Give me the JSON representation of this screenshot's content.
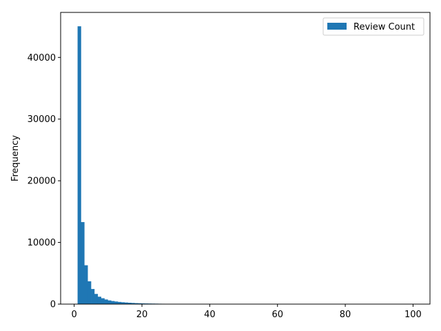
{
  "chart_data": {
    "type": "bar",
    "subtype": "histogram",
    "ylabel": "Frequency",
    "xlabel": "",
    "xlim": [
      -4,
      105
    ],
    "ylim": [
      0,
      47300
    ],
    "xticks": [
      0,
      20,
      40,
      60,
      80,
      100
    ],
    "yticks": [
      0,
      10000,
      20000,
      30000,
      40000
    ],
    "bin_start": 1,
    "bin_width": 0.99,
    "series": [
      {
        "name": "Review Count",
        "color": "#1f77b4",
        "values": [
          45050,
          13300,
          6300,
          3700,
          2450,
          1650,
          1200,
          950,
          750,
          600,
          500,
          420,
          350,
          300,
          260,
          220,
          190,
          160,
          140,
          120,
          105,
          95,
          85,
          75,
          65,
          58,
          52,
          46,
          41,
          37,
          33,
          30,
          27,
          24,
          22,
          20,
          18,
          16,
          15,
          14,
          13,
          12,
          11,
          10,
          9,
          8,
          8,
          7,
          7,
          6,
          6,
          5,
          5,
          5,
          4,
          4,
          4,
          3,
          3,
          3,
          3,
          3,
          2,
          2,
          2,
          2,
          2,
          2,
          2,
          2,
          1,
          1,
          1,
          1,
          1,
          1,
          1,
          1,
          1,
          1,
          1,
          1,
          1,
          1,
          1,
          1,
          1,
          1,
          1,
          1,
          1,
          1,
          1,
          1,
          1,
          1,
          1,
          1,
          1,
          1
        ]
      }
    ],
    "legend": {
      "position": "top-right"
    },
    "grid": false
  }
}
